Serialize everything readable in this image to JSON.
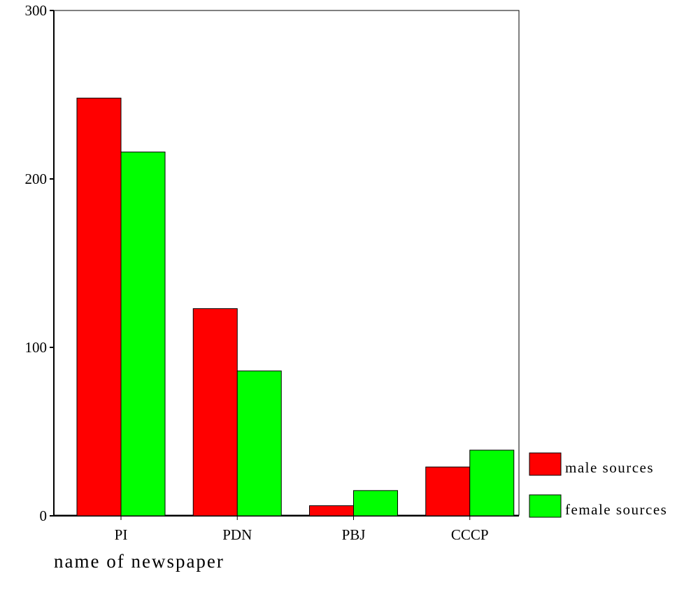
{
  "chart_data": {
    "type": "bar",
    "title": "",
    "xlabel": "name of newspaper",
    "ylabel": "",
    "categories": [
      "PI",
      "PDN",
      "PBJ",
      "CCCP"
    ],
    "series": [
      {
        "name": "male sources",
        "color": "#ff0000",
        "values": [
          248,
          123,
          6,
          29
        ]
      },
      {
        "name": "female sources",
        "color": "#00ff00",
        "values": [
          216,
          86,
          15,
          39
        ]
      }
    ],
    "ylim": [
      0,
      300
    ],
    "yticks": [
      0,
      100,
      200,
      300
    ],
    "grid": false,
    "legend": "right"
  }
}
